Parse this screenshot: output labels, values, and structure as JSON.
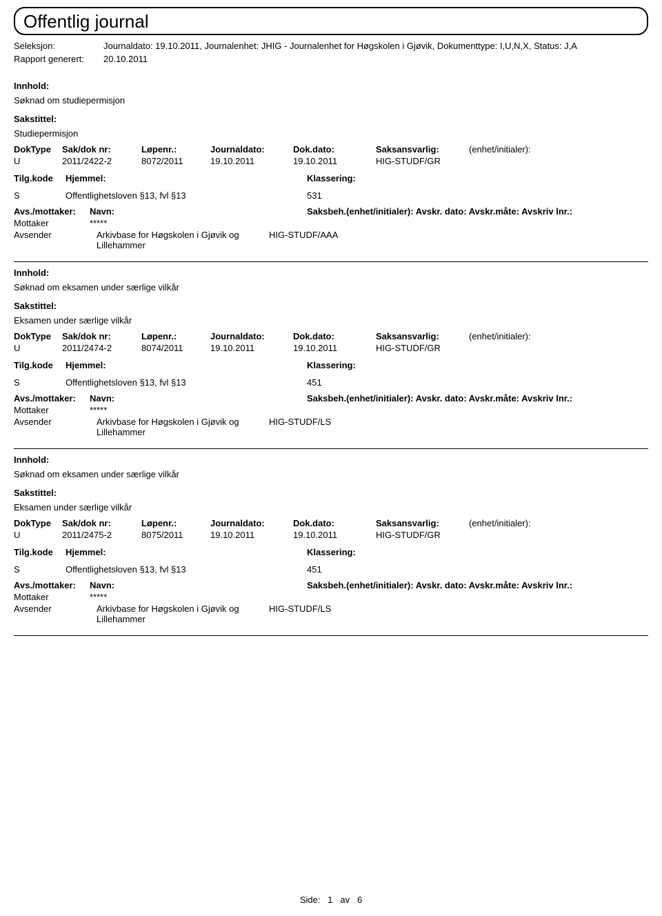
{
  "header": {
    "title": "Offentlig journal"
  },
  "meta": {
    "seleksjon_label": "Seleksjon:",
    "seleksjon_value": "Journaldato: 19.10.2011, Journalenhet: JHIG - Journalenhet for Høgskolen i Gjøvik, Dokumenttype: I,U,N,X, Status: J,A",
    "rapport_label": "Rapport generert:",
    "rapport_value": "20.10.2011"
  },
  "labels": {
    "innhold": "Innhold:",
    "sakstittel": "Sakstittel:",
    "doktype": "DokType",
    "sakdoknr": "Sak/dok nr:",
    "lopenr": "Løpenr.:",
    "journaldato": "Journaldato:",
    "dokdato": "Dok.dato:",
    "saksansvarlig": "Saksansvarlig:",
    "enhet_init": "(enhet/initialer):",
    "tilgkode": "Tilg.kode",
    "hjemmel": "Hjemmel:",
    "klassering": "Klassering:",
    "avsmottaker": "Avs./mottaker:",
    "navn": "Navn:",
    "saksbeh_line": "Saksbeh.(enhet/initialer): Avskr. dato: Avskr.måte: Avskriv lnr.:",
    "mottaker": "Mottaker",
    "avsender": "Avsender"
  },
  "entries": [
    {
      "content_title": "Søknad om studiepermisjon",
      "case_title": "Studiepermisjon",
      "doktype": "U",
      "sakdoknr": "2011/2422-2",
      "lopenr": "8072/2011",
      "journaldato": "19.10.2011",
      "dokdato": "19.10.2011",
      "saksansvarlig": "HIG-STUDF/GR",
      "tilgkode": "S",
      "hjemmel": "Offentlighetsloven §13, fvl §13",
      "klassering": "531",
      "mottaker_name": "*****",
      "avsender_name": "Arkivbase for Høgskolen i Gjøvik og Lillehammer",
      "avsender_unit": "HIG-STUDF/AAA"
    },
    {
      "content_title": "Søknad om eksamen under særlige vilkår",
      "case_title": "Eksamen under særlige vilkår",
      "doktype": "U",
      "sakdoknr": "2011/2474-2",
      "lopenr": "8074/2011",
      "journaldato": "19.10.2011",
      "dokdato": "19.10.2011",
      "saksansvarlig": "HIG-STUDF/GR",
      "tilgkode": "S",
      "hjemmel": "Offentlighetsloven §13, fvl §13",
      "klassering": "451",
      "mottaker_name": "*****",
      "avsender_name": "Arkivbase for Høgskolen i Gjøvik og Lillehammer",
      "avsender_unit": "HIG-STUDF/LS"
    },
    {
      "content_title": "Søknad om eksamen under særlige vilkår",
      "case_title": "Eksamen under særlige vilkår",
      "doktype": "U",
      "sakdoknr": "2011/2475-2",
      "lopenr": "8075/2011",
      "journaldato": "19.10.2011",
      "dokdato": "19.10.2011",
      "saksansvarlig": "HIG-STUDF/GR",
      "tilgkode": "S",
      "hjemmel": "Offentlighetsloven §13, fvl §13",
      "klassering": "451",
      "mottaker_name": "*****",
      "avsender_name": "Arkivbase for Høgskolen i Gjøvik og Lillehammer",
      "avsender_unit": "HIG-STUDF/LS"
    }
  ],
  "footer": {
    "side_label": "Side:",
    "page": "1",
    "av": "av",
    "total": "6"
  }
}
